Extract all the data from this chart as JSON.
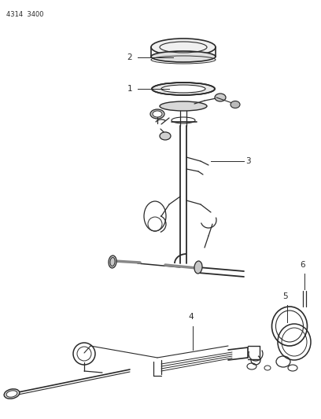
{
  "bg_color": "#ffffff",
  "line_color": "#2a2a2a",
  "text_color": "#2a2a2a",
  "corner_text": "4314  3400",
  "fig_w": 4.08,
  "fig_h": 5.33,
  "dpi": 100
}
